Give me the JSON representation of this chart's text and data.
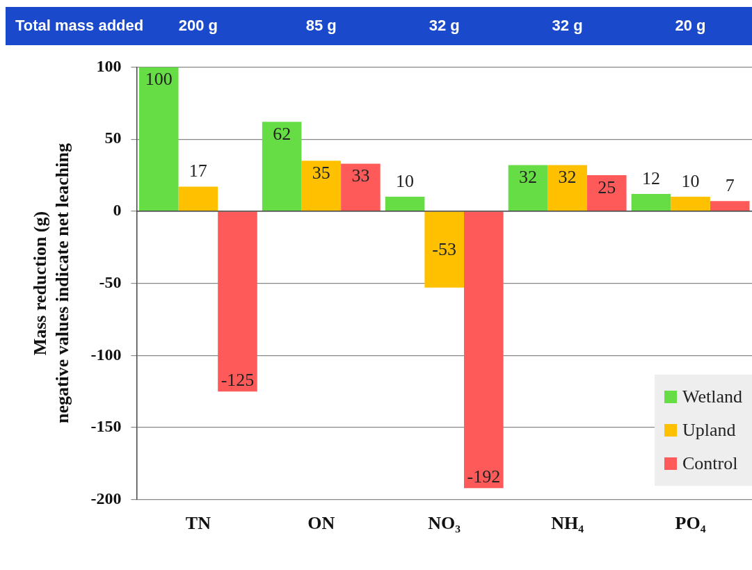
{
  "chart_data": {
    "type": "bar",
    "categories": [
      "TN",
      "ON",
      "NO₃",
      "NH₄",
      "PO₄"
    ],
    "series": [
      {
        "name": "Wetland",
        "color": "#66dd44",
        "values": [
          100,
          62,
          10,
          32,
          12
        ]
      },
      {
        "name": "Upland",
        "color": "#ffc000",
        "values": [
          17,
          35,
          -53,
          32,
          10
        ]
      },
      {
        "name": "Control",
        "color": "#ff5a5a",
        "values": [
          -125,
          33,
          -192,
          25,
          7
        ]
      }
    ],
    "ylabel": "Mass reduction (g)\nnegative values indicate net leaching",
    "ylim": [
      -200,
      100
    ],
    "yticks": [
      -200,
      -150,
      -100,
      -50,
      0,
      50,
      100
    ],
    "grid": "y",
    "legend": "bottom right",
    "data_labels": true,
    "annotations": [
      "Total mass added",
      "200 g",
      "85 g",
      "32 g",
      "32 g",
      "20 g"
    ]
  }
}
